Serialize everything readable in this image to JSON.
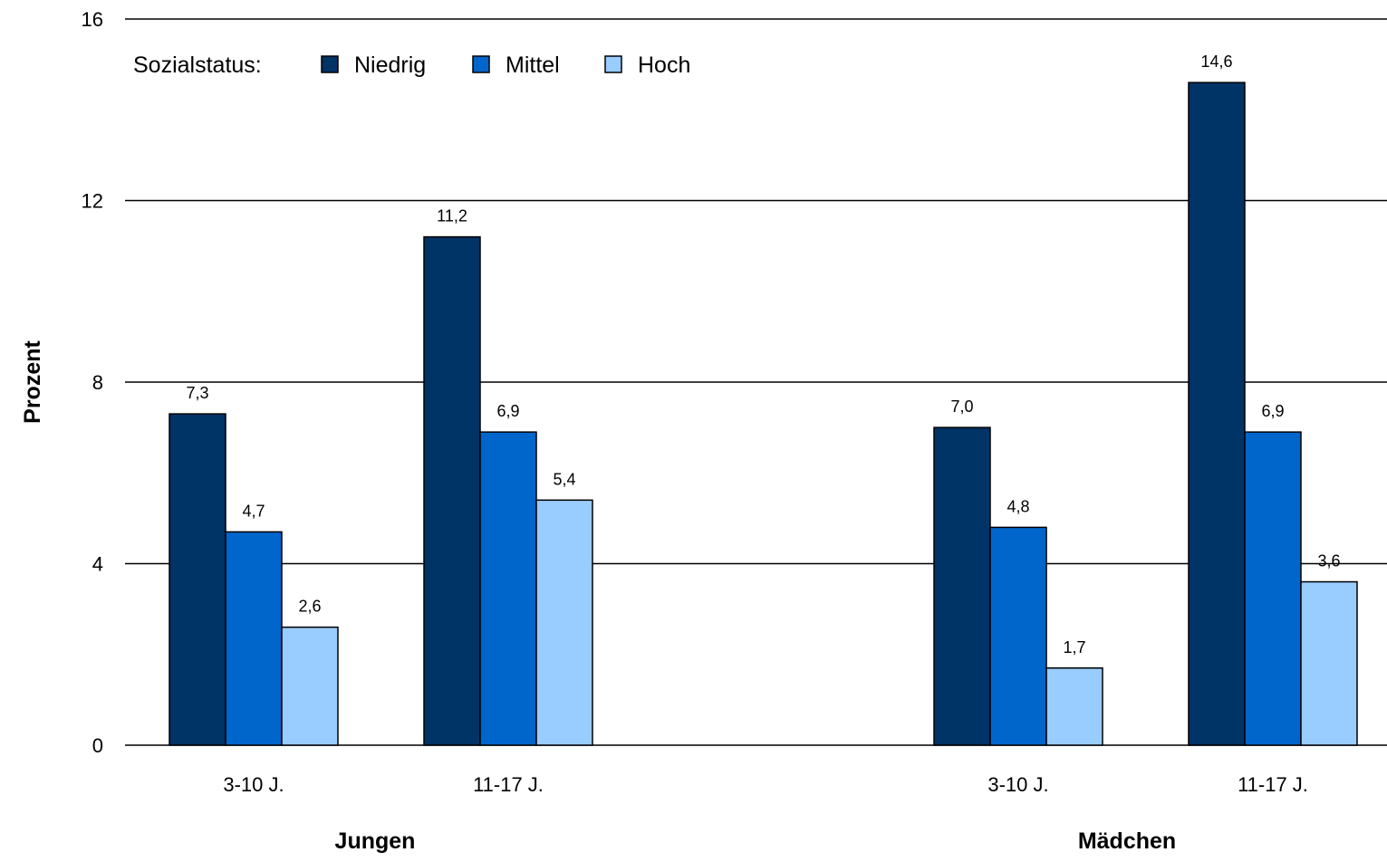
{
  "chart_data": {
    "type": "bar",
    "ylabel": "Prozent",
    "ylim": [
      0,
      16
    ],
    "yticks": [
      "0",
      "4",
      "8",
      "12",
      "16"
    ],
    "legend": {
      "title": "Sozialstatus:",
      "placement": "top-left",
      "colors": [
        "#003366",
        "#0066CC",
        "#99CCFF"
      ]
    },
    "series": [
      {
        "name": "Niedrig",
        "values": [
          7.3,
          11.2,
          7.0,
          14.6
        ],
        "labels": [
          "7,3",
          "11,2",
          "7,0",
          "14,6"
        ]
      },
      {
        "name": "Mittel",
        "values": [
          4.7,
          6.9,
          4.8,
          6.9
        ],
        "labels": [
          "4,7",
          "6,9",
          "4,8",
          "6,9"
        ]
      },
      {
        "name": "Hoch",
        "values": [
          2.6,
          5.4,
          1.7,
          3.6
        ],
        "labels": [
          "2,6",
          "5,4",
          "1,7",
          "3,6"
        ]
      }
    ],
    "categories": [
      "3-10 J.",
      "11-17 J.",
      "3-10 J.",
      "11-17 J."
    ],
    "groups": [
      {
        "name": "Jungen",
        "categories": [
          0,
          1
        ]
      },
      {
        "name": "Mädchen",
        "categories": [
          2,
          3
        ]
      }
    ],
    "grid": true
  }
}
